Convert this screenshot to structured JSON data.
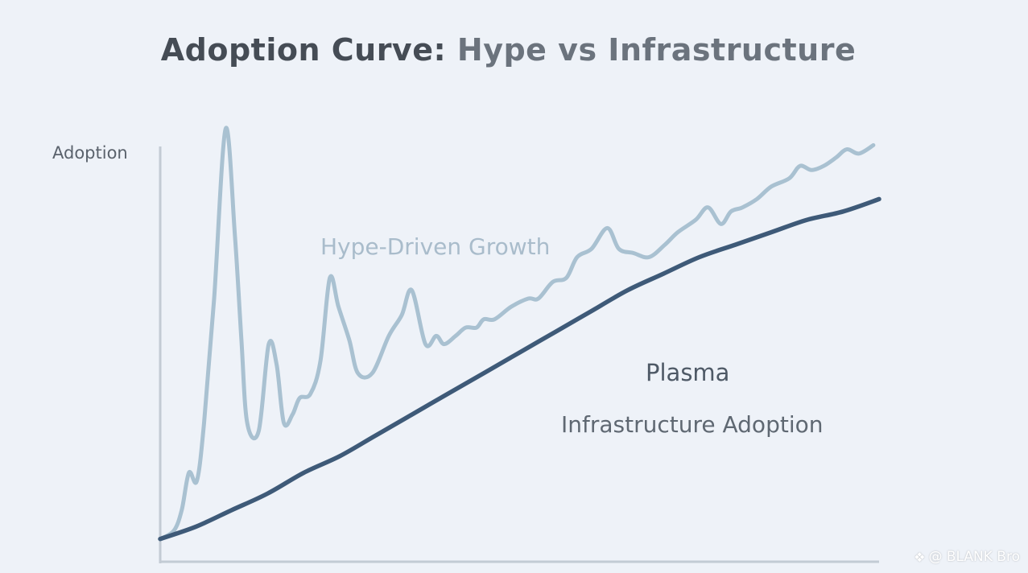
{
  "title_part1": "Adoption Curve:",
  "title_part2": "Hype vs Infrastructure",
  "watermark": {
    "text": "@ BLANK Bro",
    "icon": "diamond-logo-icon"
  },
  "chart_data": {
    "type": "line",
    "title": "Adoption Curve: Hype vs Infrastructure",
    "xlabel": "",
    "ylabel": "Adoption",
    "xlim": [
      0,
      100
    ],
    "ylim": [
      0,
      100
    ],
    "grid": false,
    "colors": {
      "hype": "#a9c1d1",
      "infrastructure": "#3e5a78",
      "axis": "#c3cbd4"
    },
    "series": [
      {
        "name": "Hype-Driven Growth",
        "annotation": "Hype-Driven Growth",
        "x": [
          0,
          1.9,
          3,
          4,
          5.1,
          6.1,
          7.5,
          9.1,
          10.4,
          11.3,
          12.1,
          13.7,
          15.1,
          16.2,
          17.2,
          18.4,
          19.4,
          20.9,
          22.3,
          23.6,
          24.8,
          26.3,
          27.5,
          29.5,
          31.8,
          33.6,
          35,
          36.9,
          38.4,
          39.5,
          41.1,
          42.5,
          44,
          45,
          46.5,
          48.8,
          51.2,
          52.6,
          54.6,
          56.5,
          58,
          60,
          62.2,
          63.8,
          65.8,
          68,
          70.2,
          72,
          74.5,
          76.2,
          78,
          79.4,
          81,
          83,
          85,
          87.5,
          89,
          90.6,
          92.3,
          94,
          95.5,
          97.2,
          99.2
        ],
        "values": [
          2,
          4,
          9,
          18,
          16,
          30,
          60,
          101,
          75,
          50,
          30,
          28,
          49,
          44,
          30,
          32,
          36,
          37,
          45,
          65,
          58,
          50,
          42,
          42,
          51,
          56,
          62,
          49,
          51,
          49,
          51,
          53,
          53,
          55,
          55,
          58,
          60,
          60,
          64,
          65,
          70,
          72,
          77,
          72,
          71,
          70,
          73,
          76,
          79,
          82,
          78,
          81,
          82,
          84,
          87,
          89,
          92,
          91,
          92,
          94,
          96,
          95,
          97
        ]
      },
      {
        "name": "Infrastructure Adoption",
        "annotation_label": "Plasma",
        "annotation": "Infrastructure Adoption",
        "x": [
          0,
          5,
          10,
          15,
          20,
          25,
          30,
          35,
          40,
          45,
          50,
          55,
          60,
          65,
          70,
          75,
          80,
          85,
          90,
          95,
          100
        ],
        "values": [
          2,
          5,
          9,
          13,
          18,
          22,
          27,
          32,
          37,
          42,
          47,
          52,
          57,
          62,
          66,
          70,
          73,
          76,
          79,
          81,
          84
        ]
      }
    ]
  }
}
